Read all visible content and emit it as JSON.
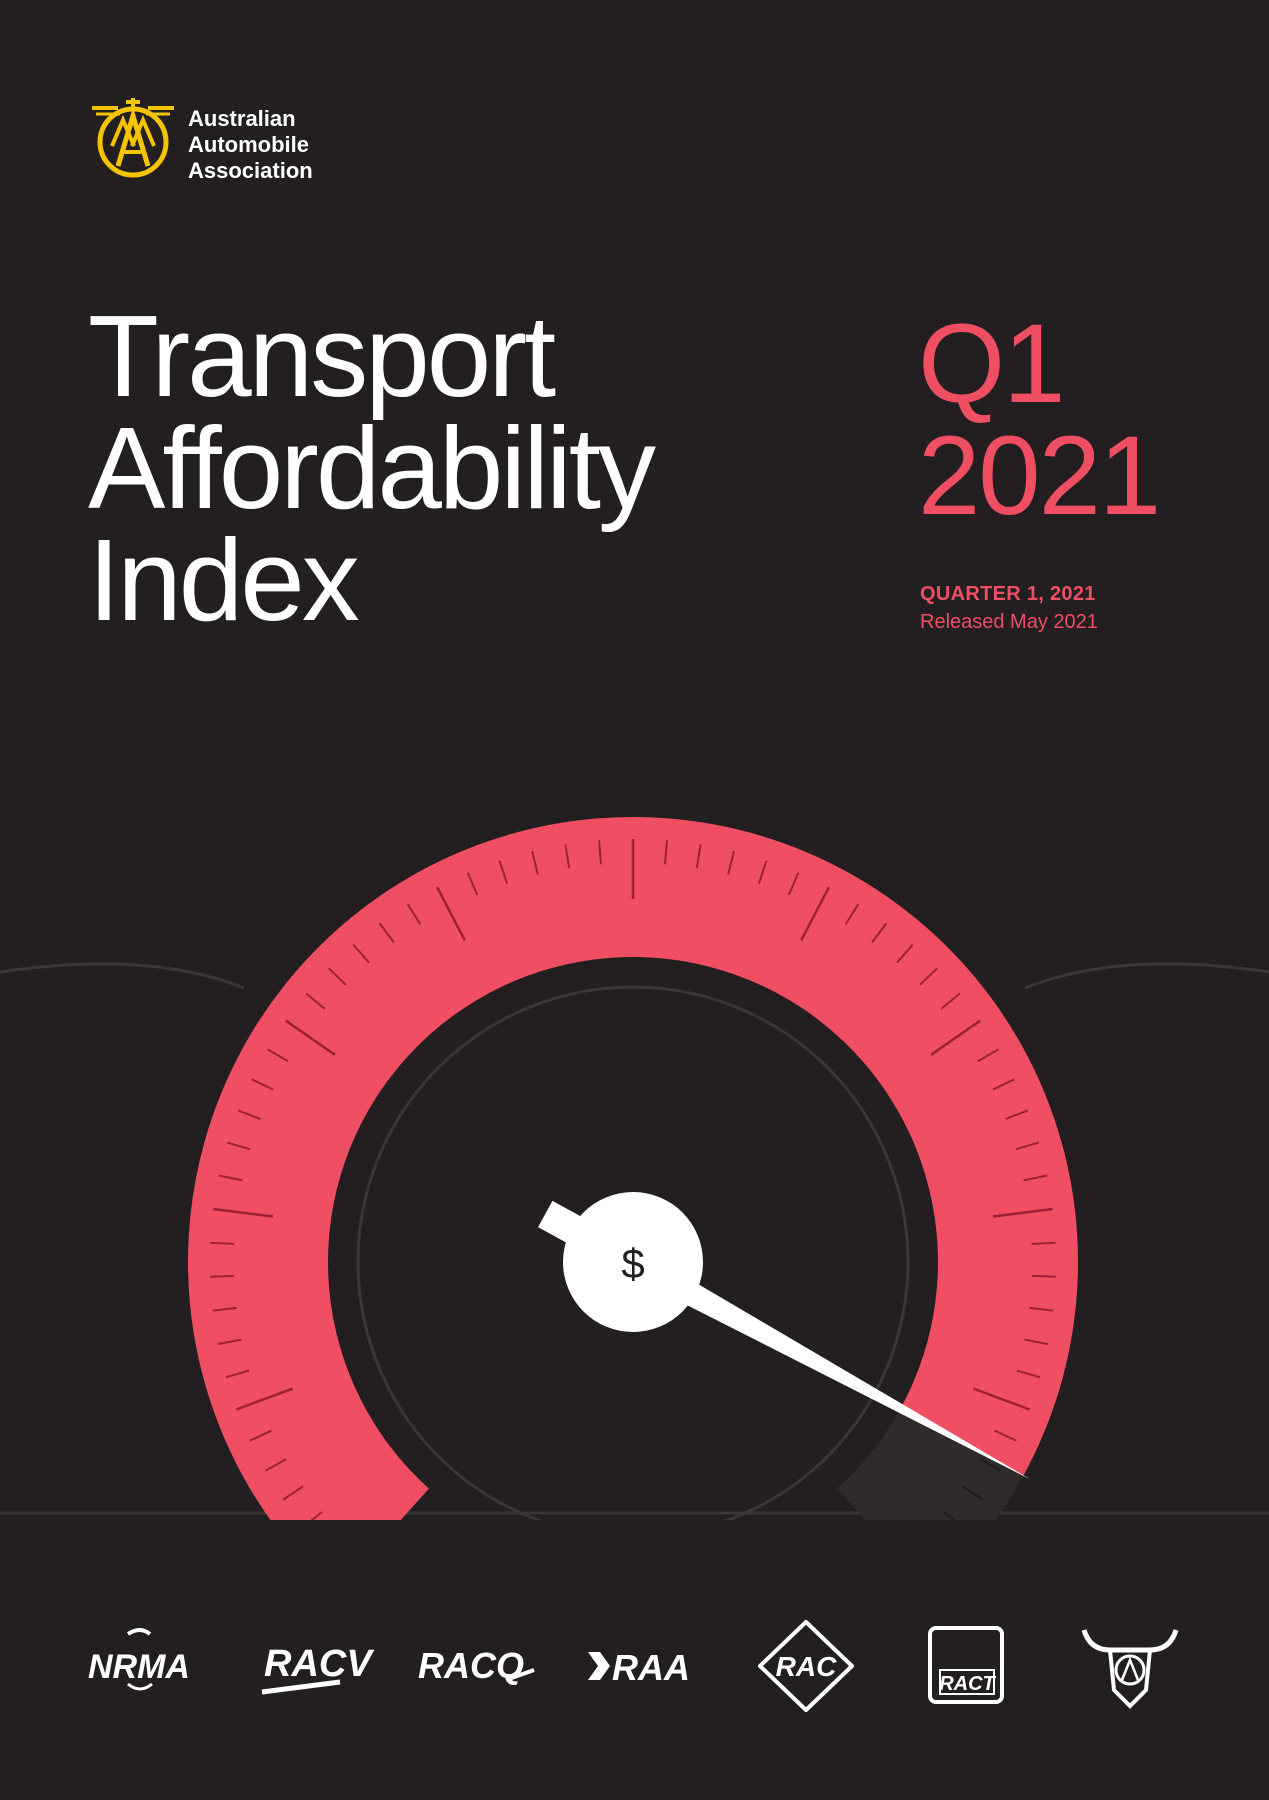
{
  "organisation": {
    "name_lines": [
      "Australian",
      "Automobile",
      "Association"
    ]
  },
  "title_lines": [
    "Transport",
    "Affordability",
    "Index"
  ],
  "edition": {
    "quarter_lines": [
      "Q1",
      "2021"
    ],
    "quarter_label": "QUARTER 1, 2021",
    "released": "Released May 2021"
  },
  "gauge": {
    "symbol": "$",
    "level": 0.93
  },
  "partners": [
    "NRMA",
    "RACV",
    "RACQ",
    "RAA",
    "RAC",
    "RACT",
    "AANT"
  ],
  "colors": {
    "background": "#231f20",
    "accent": "#ef4e63",
    "logo_gold": "#f5c400",
    "text": "#ffffff"
  }
}
